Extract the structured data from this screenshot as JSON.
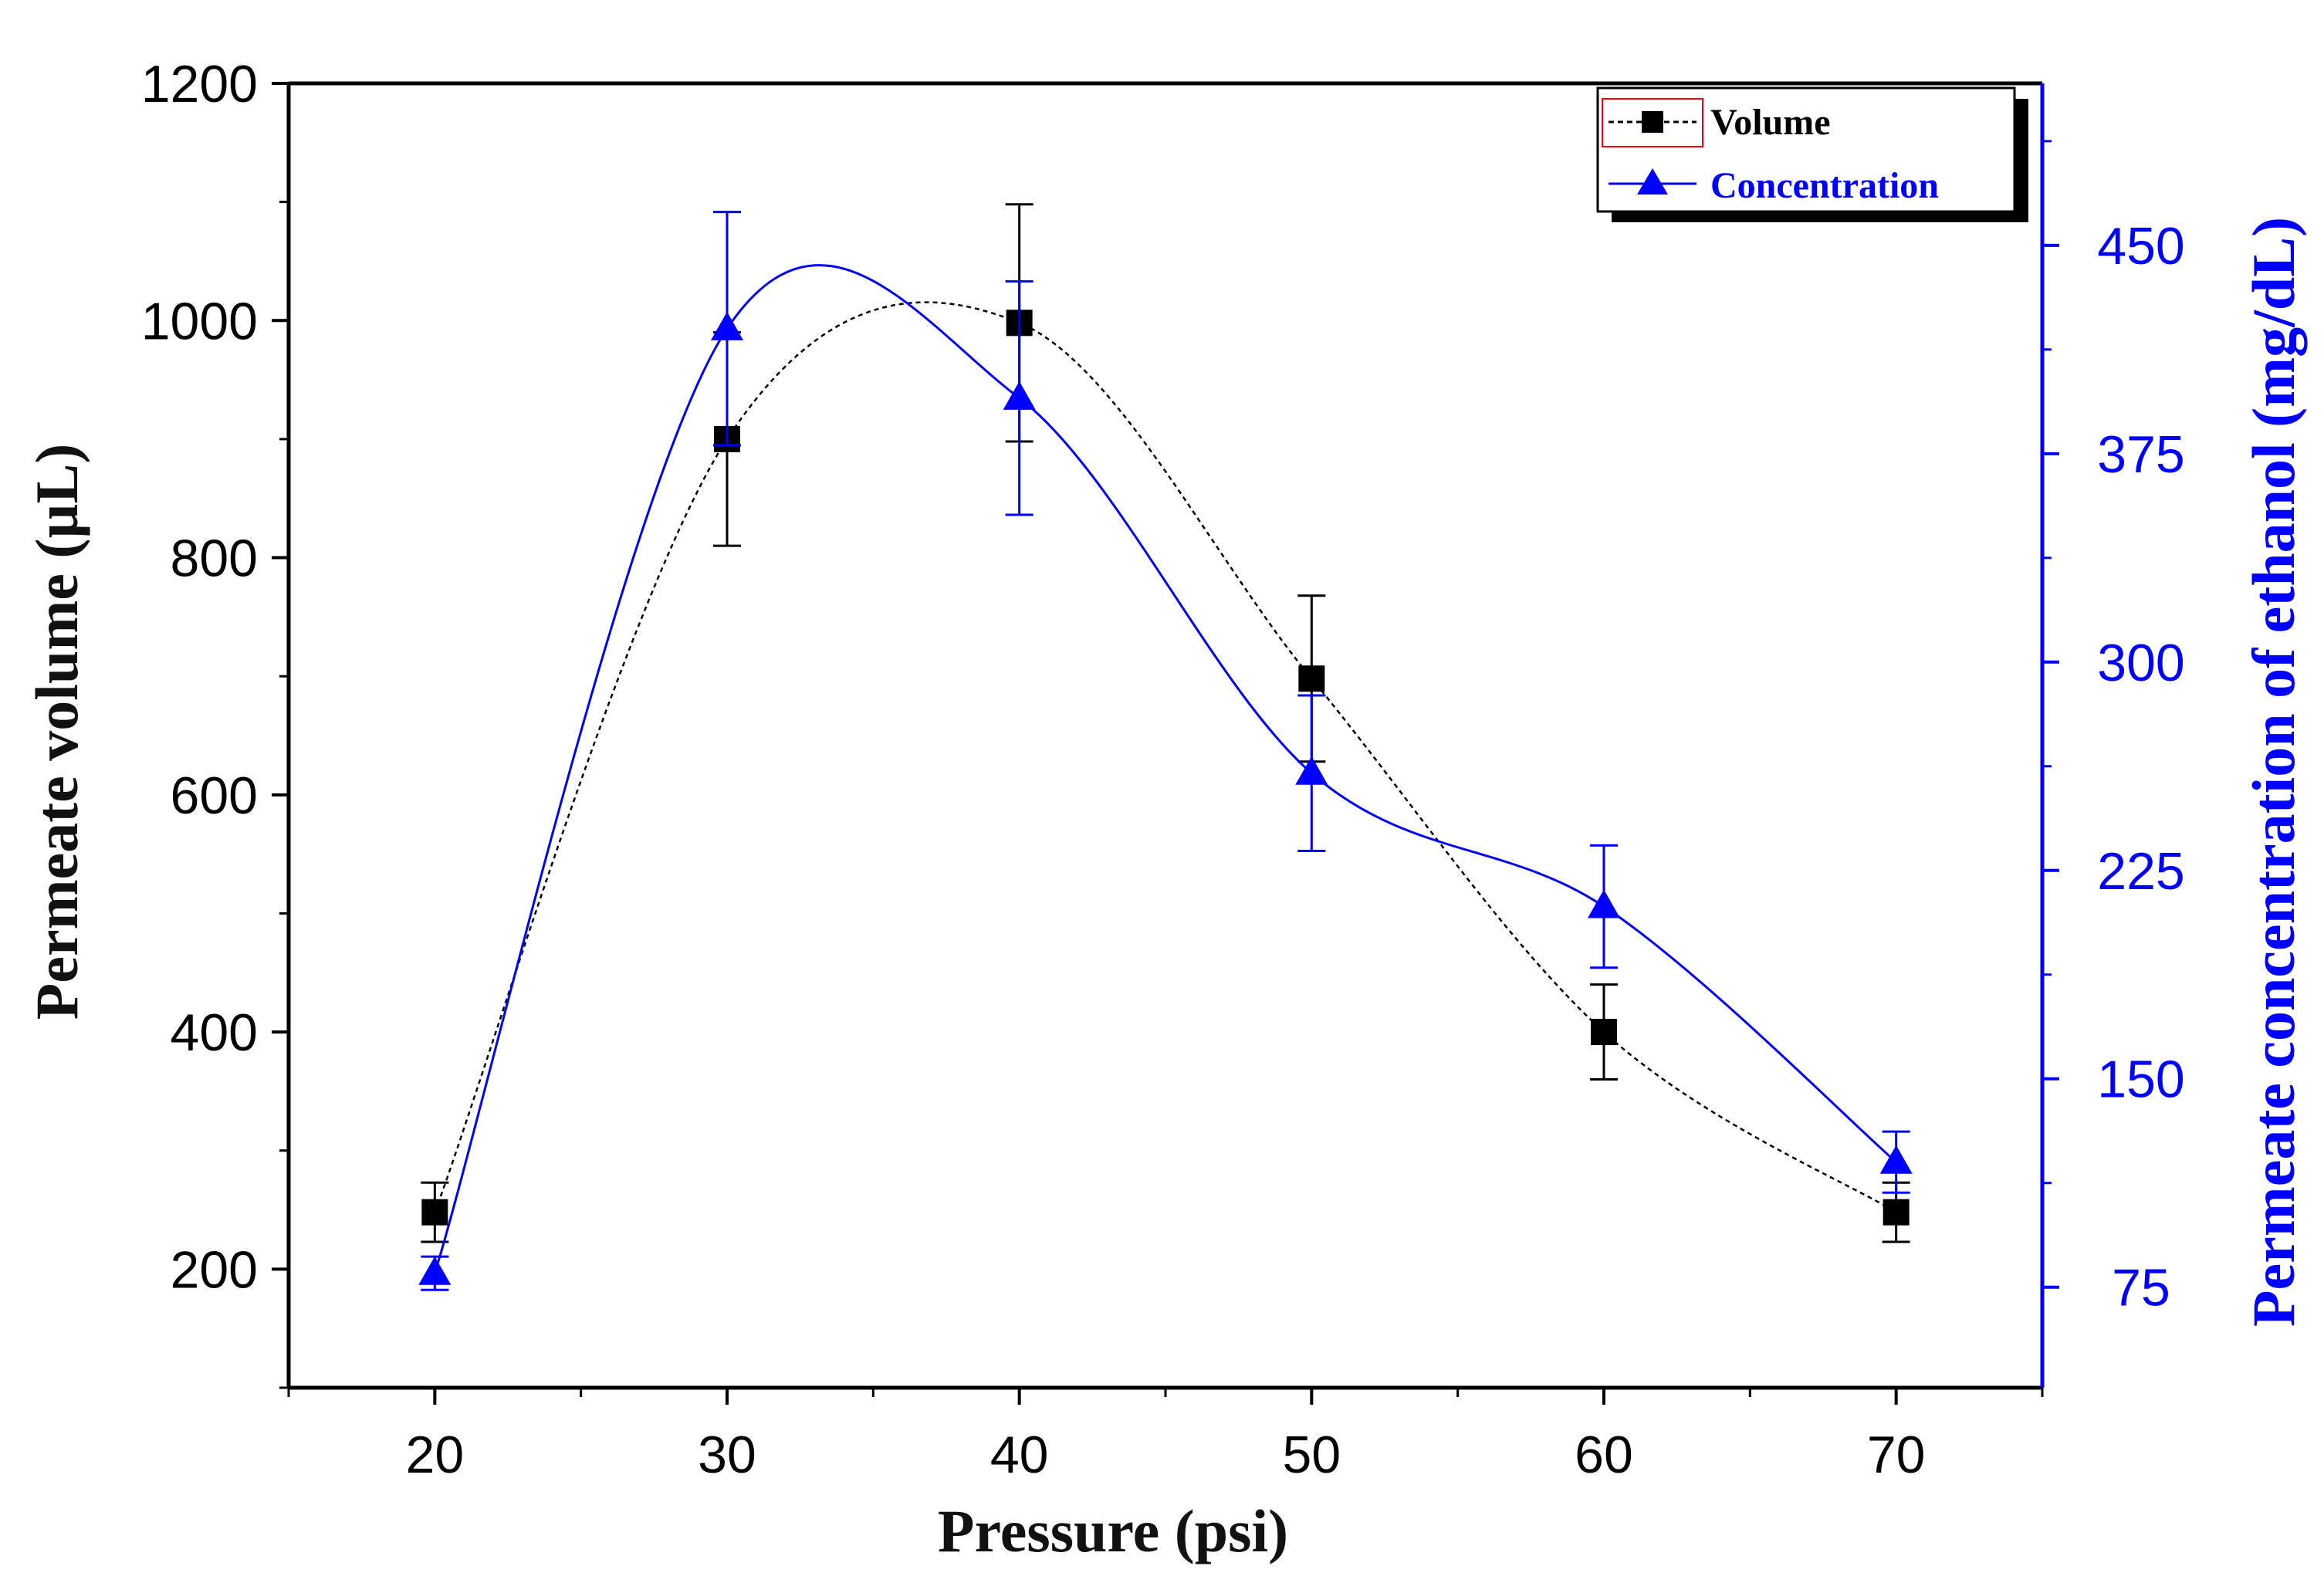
{
  "chart_data": {
    "type": "line",
    "title": "",
    "x": [
      20,
      30,
      40,
      50,
      60,
      70
    ],
    "xlabel": "Pressure (psi)",
    "xlim": [
      15,
      75
    ],
    "xticks": [
      20,
      30,
      40,
      50,
      60,
      70
    ],
    "ylabel": "Permeate volume (µL)",
    "ylim": [
      100,
      1200
    ],
    "yticks": [
      200,
      400,
      600,
      800,
      1000,
      1200
    ],
    "y2label": "Permeate concentration of ethanol (mg/dL)",
    "y2lim": [
      38.8,
      508.3
    ],
    "y2ticks": [
      75,
      150,
      225,
      300,
      375,
      450
    ],
    "series": [
      {
        "name": "Volume",
        "axis": "left",
        "values": [
          248,
          900,
          998,
          698,
          400,
          248
        ],
        "errors": [
          25,
          90,
          100,
          70,
          40,
          25
        ],
        "marker": "square",
        "line": "dotted",
        "color": "#000000"
      },
      {
        "name": "Concentration",
        "axis": "right",
        "values": [
          80,
          420,
          395,
          260,
          212,
          120
        ],
        "errors": [
          6,
          42,
          42,
          28,
          22,
          11
        ],
        "marker": "triangle",
        "line": "solid",
        "color": "#0000ff"
      }
    ],
    "legend_position": "top-right",
    "grid": false
  }
}
